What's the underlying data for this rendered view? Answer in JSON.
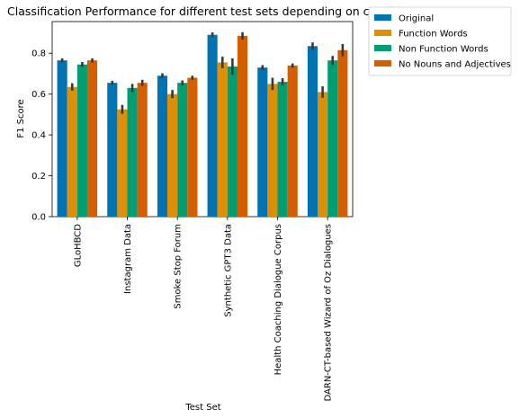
{
  "chart_data": {
    "type": "bar",
    "title": "Classification Performance for different test sets depending on condition",
    "xlabel": "Test Set",
    "ylabel": "F1 Score",
    "ylim": [
      0,
      0.955
    ],
    "yticks": [
      "0.0",
      "0.2",
      "0.4",
      "0.6",
      "0.8"
    ],
    "grid": false,
    "legend_position": "outside-top-right",
    "categories": [
      "GLoHBCD",
      "Instagram Data",
      "Smoke Stop Forum",
      "Synthetic GPT3 Data",
      "Health Coaching Dialogue Corpus",
      "DARN-CT-based Wizard of Oz Dialogues"
    ],
    "series": [
      {
        "name": "Original",
        "color": "#0173b2",
        "values": [
          0.765,
          0.655,
          0.69,
          0.89,
          0.73,
          0.835
        ],
        "errors": [
          0.01,
          0.01,
          0.012,
          0.012,
          0.012,
          0.018
        ]
      },
      {
        "name": "Function Words",
        "color": "#de8f05",
        "values": [
          0.635,
          0.525,
          0.6,
          0.755,
          0.65,
          0.61
        ],
        "errors": [
          0.018,
          0.022,
          0.02,
          0.028,
          0.03,
          0.028
        ]
      },
      {
        "name": "Non Function Words",
        "color": "#029e73",
        "values": [
          0.745,
          0.63,
          0.655,
          0.735,
          0.66,
          0.765
        ],
        "errors": [
          0.012,
          0.02,
          0.012,
          0.04,
          0.018,
          0.022
        ]
      },
      {
        "name": "No Nouns and Adjectives",
        "color": "#d55e00",
        "values": [
          0.765,
          0.655,
          0.68,
          0.885,
          0.74,
          0.815
        ],
        "errors": [
          0.01,
          0.015,
          0.01,
          0.018,
          0.01,
          0.03
        ]
      }
    ]
  }
}
